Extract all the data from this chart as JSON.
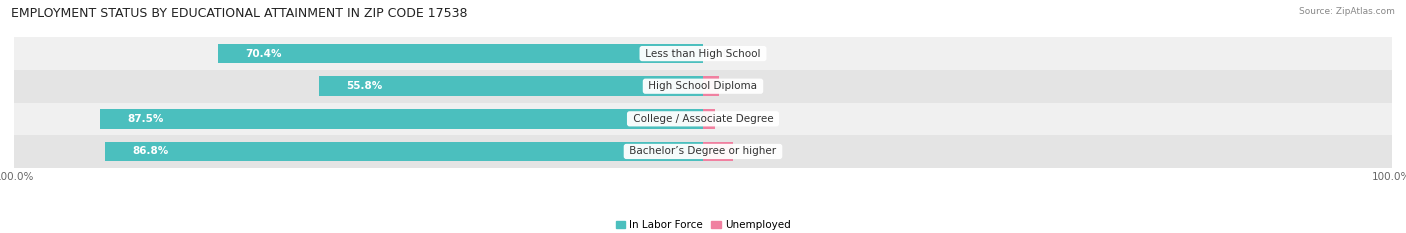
{
  "title": "EMPLOYMENT STATUS BY EDUCATIONAL ATTAINMENT IN ZIP CODE 17538",
  "source": "Source: ZipAtlas.com",
  "categories": [
    "Less than High School",
    "High School Diploma",
    "College / Associate Degree",
    "Bachelor’s Degree or higher"
  ],
  "in_labor_force": [
    70.4,
    55.8,
    87.5,
    86.8
  ],
  "unemployed": [
    0.0,
    2.3,
    1.7,
    4.3
  ],
  "labor_force_color": "#4BBFBE",
  "unemployed_color": "#F080A0",
  "row_bg_odd": "#f0f0f0",
  "row_bg_even": "#e4e4e4",
  "title_fontsize": 9,
  "label_fontsize": 7.5,
  "tick_fontsize": 7.5,
  "legend_label_labor": "In Labor Force",
  "legend_label_unemp": "Unemployed",
  "background_color": "#ffffff",
  "x_left_label": "100.0%",
  "x_right_label": "100.0%"
}
